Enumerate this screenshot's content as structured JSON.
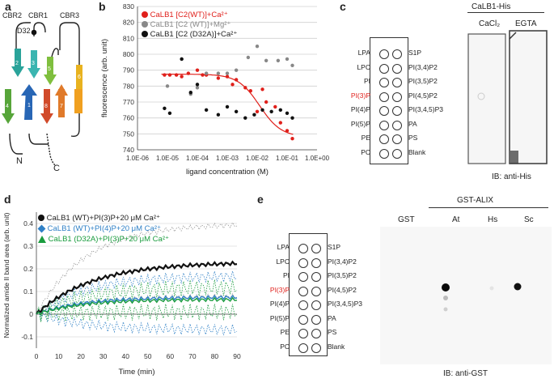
{
  "panels": {
    "a": {
      "label": "a",
      "strands": [
        "CBR2",
        "CBR1",
        "CBR3"
      ],
      "residue": "D32",
      "strand_numbers": [
        "1",
        "2",
        "3",
        "4",
        "5",
        "6",
        "7",
        "8"
      ],
      "termini": [
        "N",
        "C"
      ]
    },
    "b": {
      "label": "b",
      "legend": [
        {
          "text": "CaLB1 [C2(WT)]+Ca²⁺",
          "color": "#e0201b"
        },
        {
          "text": "CaLB1 [C2 (WT)]+Mg²⁺",
          "color": "#888888"
        },
        {
          "text": "CaLB1 [C2 (D32A)]+Ca²⁺",
          "color": "#111111"
        }
      ]
    },
    "c": {
      "label": "c",
      "title": "CaLB1-His",
      "lanes": [
        "CaCl₂",
        "EGTA"
      ],
      "caption": "IB: anti-His",
      "left_lipids": [
        "LPA",
        "LPC",
        "PI",
        "PI(3)P",
        "PI(4)P",
        "PI(5)P",
        "PE",
        "PC"
      ],
      "right_lipids": [
        "S1P",
        "PI(3,4)P2",
        "PI(3,5)P2",
        "PI(4,5)P2",
        "PI(3,4,5)P3",
        "PA",
        "PS",
        "Blank"
      ],
      "highlight_color": "#e0201b"
    },
    "d": {
      "label": "d",
      "legend": [
        {
          "text": "CaLB1 (WT)+PI(3)P+20 μM Ca²⁺",
          "color": "#111111"
        },
        {
          "text": "CaLB1 (WT)+PI(4)P+20 μM Ca²⁺",
          "color": "#2f80c6"
        },
        {
          "text": "CaLB1 (D32A)+PI(3)P+20 μM Ca²⁺",
          "color": "#1a9c3e"
        }
      ]
    },
    "e": {
      "label": "e",
      "title": "GST-ALIX",
      "lanes": [
        "GST",
        "At",
        "Hs",
        "Sc"
      ],
      "caption": "IB: anti-GST",
      "left_lipids": [
        "LPA",
        "LPC",
        "PI",
        "PI(3)P",
        "PI(4)P",
        "PI(5)P",
        "PE",
        "PC"
      ],
      "right_lipids": [
        "S1P",
        "PI(3,4)P2",
        "PI(3,5)P2",
        "PI(4,5)P2",
        "PI(3,4,5)P3",
        "PA",
        "PS",
        "Blank"
      ]
    }
  },
  "chart_data": [
    {
      "type": "scatter",
      "panel": "b",
      "xlabel": "ligand concentration (M)",
      "ylabel": "fluorescence (arb. unit)",
      "x_scale": "log",
      "xlim": [
        1e-06,
        1
      ],
      "ylim": [
        740,
        830
      ],
      "x_ticks": [
        "1.0E-06",
        "1.0E-05",
        "1.0E-04",
        "1.0E-03",
        "1.0E-02",
        "1.0E-01",
        "1.0E+00"
      ],
      "y_ticks": [
        740,
        750,
        760,
        770,
        780,
        790,
        800,
        810,
        820,
        830
      ],
      "series": [
        {
          "name": "CaLB1 [C2(WT)]+Ca2+",
          "color": "#e0201b",
          "x": [
            8e-06,
            1.2e-05,
            2e-05,
            3e-05,
            5e-05,
            0.0001,
            0.00015,
            0.0002,
            0.0005,
            0.001,
            0.0015,
            0.002,
            0.004,
            0.006,
            0.01,
            0.015,
            0.02,
            0.04,
            0.06,
            0.1,
            0.15
          ],
          "y": [
            787,
            787,
            787,
            786,
            788,
            790,
            787,
            787,
            785,
            786,
            781,
            784,
            779,
            777,
            764,
            778,
            770,
            767,
            757,
            752,
            747
          ],
          "fit": {
            "top": 787.5,
            "bottom": 748,
            "ec50": 0.012,
            "hill": 1.2
          }
        },
        {
          "name": "CaLB1 [C2 (WT)]+Mg2+",
          "color": "#888888",
          "x": [
            1e-05,
            3e-05,
            6e-05,
            0.0001,
            0.0002,
            0.0005,
            0.001,
            0.002,
            0.005,
            0.01,
            0.02,
            0.05,
            0.1,
            0.15
          ],
          "y": [
            780,
            797,
            775,
            779,
            788,
            788,
            788,
            790,
            798,
            805,
            796,
            796,
            797,
            793
          ],
          "fit": null
        },
        {
          "name": "CaLB1 [C2 (D32A)]+Ca2+",
          "color": "#111111",
          "x": [
            8e-06,
            1.2e-05,
            3e-05,
            6e-05,
            0.0001,
            0.0002,
            0.0005,
            0.001,
            0.002,
            0.004,
            0.008,
            0.015,
            0.03,
            0.06,
            0.1,
            0.15
          ],
          "y": [
            766,
            763,
            797,
            776,
            781,
            765,
            762,
            767,
            764,
            760,
            762,
            765,
            764,
            765,
            763,
            760
          ],
          "fit": null
        }
      ]
    },
    {
      "type": "line",
      "panel": "d",
      "xlabel": "Time (min)",
      "ylabel": "Normalized amide II band area (arb. unit)",
      "xlim": [
        0,
        90
      ],
      "ylim": [
        -0.15,
        0.45
      ],
      "x_ticks": [
        0,
        10,
        20,
        30,
        40,
        50,
        60,
        70,
        80,
        90
      ],
      "y_ticks": [
        -0.1,
        0,
        0.1,
        0.2,
        0.3,
        0.4
      ],
      "series": [
        {
          "name": "CaLB1 (WT)+PI(3)P",
          "color": "#111111",
          "plateau": 0.23,
          "rate": 0.04
        },
        {
          "name": "CaLB1 (WT)+PI(4)P",
          "color": "#2f80c6",
          "plateau": 0.075,
          "rate": 0.05
        },
        {
          "name": "CaLB1 (D32A)+PI(3)P",
          "color": "#1a9c3e",
          "plateau": 0.065,
          "rate": 0.05
        }
      ],
      "ci_bands": [
        {
          "color": "#999999",
          "upper_plateau": 0.4,
          "lower_plateau": 0.08
        },
        {
          "color": "#2f80c6",
          "upper_plateau": 0.17,
          "lower_plateau": -0.07
        },
        {
          "color": "#1a9c3e",
          "upper_plateau": 0.12,
          "lower_plateau": 0.01
        }
      ]
    }
  ]
}
